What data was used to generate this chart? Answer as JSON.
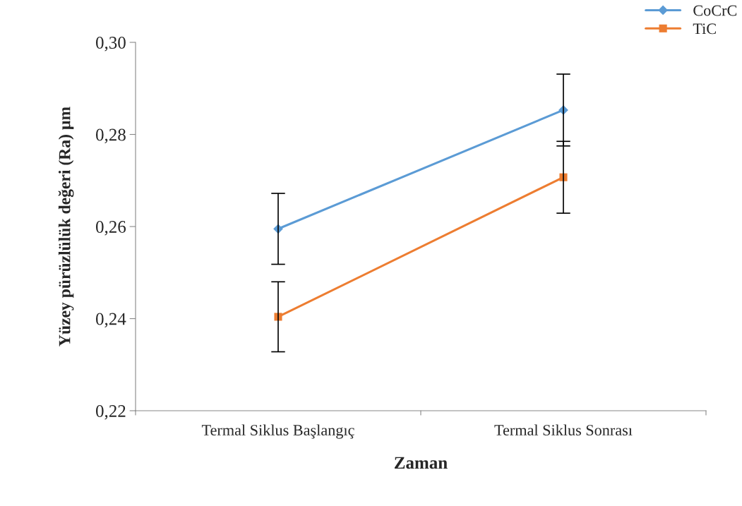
{
  "chart_data": {
    "type": "line",
    "xlabel": "Zaman",
    "ylabel": "Yüzey pürüzlülük değeri (Ra) µm",
    "categories": [
      "Termal Siklus Başlangıç",
      "Termal Siklus Sonrası"
    ],
    "series": [
      {
        "name": "CoCrC",
        "color": "#5b9bd5",
        "marker": "diamond",
        "values": [
          0.2595,
          0.2853
        ],
        "errors": [
          0.0077,
          0.0078
        ]
      },
      {
        "name": "TiC",
        "color": "#ed7d31",
        "marker": "square",
        "values": [
          0.2404,
          0.2707
        ],
        "errors": [
          0.0076,
          0.0078
        ]
      }
    ],
    "ylim": [
      0.22,
      0.3
    ],
    "yticks": [
      {
        "value": 0.22,
        "label": "0,22"
      },
      {
        "value": 0.24,
        "label": "0,24"
      },
      {
        "value": 0.26,
        "label": "0,26"
      },
      {
        "value": 0.28,
        "label": "0,28"
      },
      {
        "value": 0.3,
        "label": "0,30"
      }
    ],
    "grid": false,
    "legend": "top right",
    "line_style": "solid"
  }
}
